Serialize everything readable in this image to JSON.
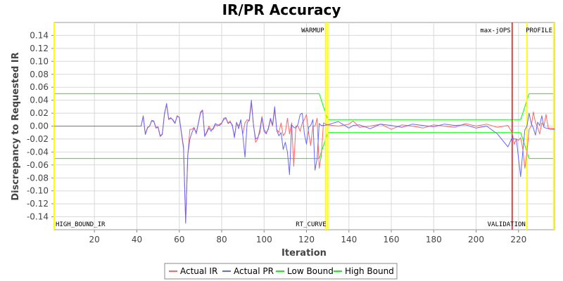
{
  "chart_data": {
    "type": "line",
    "title": "IR/PR Accuracy",
    "xlabel": "Iteration",
    "ylabel": "Discrepancy to Requested IR",
    "xlim": [
      1,
      237
    ],
    "ylim": [
      -0.16,
      0.16
    ],
    "x_ticks": [
      20,
      40,
      60,
      80,
      100,
      120,
      140,
      160,
      180,
      200,
      220
    ],
    "y_ticks": [
      -0.14,
      -0.12,
      -0.1,
      -0.08,
      -0.06,
      -0.04,
      -0.02,
      0.0,
      0.02,
      0.04,
      0.06,
      0.08,
      0.1,
      0.12,
      0.14
    ],
    "y_tick_labels": [
      "-0.14",
      "-0.12",
      "-0.10",
      "-0.08",
      "-0.06",
      "-0.04",
      "-0.02",
      "0.00",
      "0.02",
      "0.04",
      "0.06",
      "0.08",
      "0.10",
      "0.12",
      "0.14"
    ],
    "grid": true,
    "legend_position": "bottom",
    "markers": [
      {
        "label": "HIGH_BOUND_IR",
        "x": 1,
        "color": "#ffff00",
        "label_pos": "bottom"
      },
      {
        "label": "WARMUP",
        "x": 129,
        "color": "#ffff00",
        "label_pos": "top"
      },
      {
        "label": "RT_CURVE",
        "x": 130,
        "color": "#ffff00",
        "label_pos": "bottom"
      },
      {
        "label": "max-jOPS",
        "x": 217,
        "color": "#ff0000",
        "label_pos": "top"
      },
      {
        "label": "VALIDATION",
        "x": 224,
        "color": "#ffff00",
        "label_pos": "bottom"
      },
      {
        "label": "PROFILE",
        "x": 237,
        "color": "#ffff00",
        "label_pos": "top"
      }
    ],
    "series": [
      {
        "name": "Actual IR",
        "color": "#ff6666",
        "x": [
          1,
          42,
          43,
          44,
          45,
          46,
          47,
          48,
          49,
          50,
          51,
          52,
          53,
          54,
          55,
          56,
          57,
          58,
          59,
          60,
          61,
          62,
          63,
          64,
          65,
          66,
          67,
          68,
          69,
          70,
          71,
          72,
          73,
          74,
          75,
          76,
          77,
          78,
          79,
          80,
          81,
          82,
          83,
          84,
          85,
          86,
          87,
          88,
          89,
          90,
          91,
          92,
          93,
          94,
          95,
          96,
          97,
          98,
          99,
          100,
          101,
          102,
          103,
          104,
          105,
          106,
          107,
          108,
          109,
          110,
          111,
          112,
          113,
          114,
          115,
          116,
          117,
          118,
          119,
          120,
          121,
          122,
          123,
          124,
          125,
          126,
          127,
          128,
          130,
          135,
          140,
          142,
          145,
          150,
          155,
          160,
          165,
          170,
          175,
          180,
          185,
          190,
          195,
          200,
          205,
          210,
          215,
          217,
          218,
          219,
          220,
          221,
          222,
          223,
          224,
          225,
          226,
          227,
          228,
          229,
          230,
          231,
          232,
          233,
          234,
          235,
          237
        ],
        "y": [
          0.0,
          0.0,
          0.016,
          -0.012,
          -0.002,
          0.0,
          0.009,
          0.008,
          -0.002,
          -0.001,
          -0.015,
          -0.012,
          0.02,
          0.033,
          0.01,
          0.012,
          0.01,
          0.005,
          0.015,
          0.014,
          -0.012,
          -0.035,
          -0.148,
          -0.045,
          -0.005,
          -0.005,
          -0.002,
          -0.012,
          0.005,
          0.022,
          0.025,
          -0.015,
          -0.008,
          0.0,
          -0.005,
          -0.005,
          0.002,
          0.0,
          0.003,
          0.005,
          0.01,
          0.012,
          0.005,
          0.008,
          0.0,
          -0.015,
          0.005,
          0.0,
          0.008,
          -0.012,
          0.005,
          0.01,
          0.008,
          0.035,
          0.002,
          -0.025,
          -0.02,
          -0.005,
          0.015,
          -0.005,
          -0.01,
          -0.005,
          0.01,
          0.0,
          0.025,
          -0.005,
          -0.01,
          0.005,
          -0.015,
          -0.01,
          0.012,
          -0.012,
          0.005,
          -0.062,
          0.0,
          0.0,
          -0.008,
          0.005,
          0.01,
          0.018,
          -0.01,
          -0.03,
          0.0,
          0.0,
          0.012,
          -0.065,
          -0.045,
          0.005,
          0.002,
          0.0,
          0.003,
          0.008,
          -0.002,
          0.0,
          0.003,
          -0.005,
          0.002,
          0.0,
          -0.003,
          0.002,
          0.0,
          -0.002,
          0.004,
          0.0,
          0.003,
          -0.002,
          0.001,
          -0.01,
          -0.028,
          -0.02,
          -0.022,
          -0.018,
          -0.035,
          -0.065,
          -0.04,
          -0.005,
          0.0,
          0.022,
          0.005,
          -0.002,
          -0.012,
          0.005,
          0.0,
          0.018,
          -0.003,
          -0.003,
          -0.004
        ]
      },
      {
        "name": "Actual PR",
        "color": "#6666ff",
        "x": [
          1,
          42,
          43,
          44,
          45,
          46,
          47,
          48,
          49,
          50,
          51,
          52,
          53,
          54,
          55,
          56,
          57,
          58,
          59,
          60,
          61,
          62,
          63,
          64,
          65,
          66,
          67,
          68,
          69,
          70,
          71,
          72,
          73,
          74,
          75,
          76,
          77,
          78,
          79,
          80,
          81,
          82,
          83,
          84,
          85,
          86,
          87,
          88,
          89,
          90,
          91,
          92,
          93,
          94,
          95,
          96,
          97,
          98,
          99,
          100,
          101,
          102,
          103,
          104,
          105,
          106,
          107,
          108,
          109,
          110,
          111,
          112,
          113,
          114,
          115,
          116,
          117,
          118,
          119,
          120,
          121,
          122,
          123,
          124,
          125,
          126,
          127,
          128,
          130,
          135,
          140,
          142,
          145,
          150,
          155,
          160,
          165,
          170,
          175,
          180,
          185,
          190,
          195,
          200,
          205,
          210,
          215,
          217,
          218,
          219,
          220,
          221,
          222,
          223,
          224,
          225,
          226,
          227,
          228,
          229,
          230,
          231,
          232,
          233,
          234,
          235,
          237
        ],
        "y": [
          0.0,
          0.0,
          0.015,
          -0.013,
          -0.003,
          0.0,
          0.008,
          0.007,
          -0.003,
          -0.002,
          -0.016,
          -0.013,
          0.018,
          0.035,
          0.011,
          0.013,
          0.009,
          0.004,
          0.016,
          0.013,
          -0.01,
          -0.032,
          -0.15,
          -0.045,
          -0.02,
          -0.01,
          -0.003,
          -0.01,
          0.004,
          0.02,
          0.024,
          -0.016,
          -0.01,
          -0.003,
          -0.008,
          -0.003,
          0.004,
          0.002,
          0.001,
          0.004,
          0.012,
          0.013,
          0.004,
          0.006,
          0.002,
          -0.018,
          0.006,
          -0.004,
          0.01,
          -0.015,
          -0.048,
          0.005,
          0.01,
          0.04,
          0.001,
          -0.02,
          -0.018,
          -0.01,
          0.013,
          -0.008,
          -0.012,
          -0.003,
          0.012,
          0.002,
          0.03,
          -0.007,
          -0.015,
          -0.01,
          -0.036,
          -0.025,
          -0.04,
          -0.075,
          0.002,
          -0.002,
          -0.003,
          0.003,
          0.018,
          0.02,
          -0.012,
          -0.028,
          -0.002,
          0.001,
          0.01,
          -0.068,
          -0.05,
          0.004,
          0.001,
          0.001,
          0.002,
          0.007,
          -0.003,
          0.001,
          0.002,
          -0.004,
          0.003,
          0.001,
          -0.002,
          0.003,
          0.001,
          -0.001,
          0.003,
          0.001,
          0.002,
          -0.003,
          0.0,
          -0.012,
          -0.032,
          -0.018,
          -0.02,
          -0.02,
          -0.05,
          -0.078,
          -0.04,
          -0.006,
          0.0,
          0.02,
          0.004,
          -0.003,
          -0.014,
          0.006,
          0.001,
          0.016,
          -0.002,
          -0.003,
          -0.004,
          -0.005,
          -0.005
        ]
      },
      {
        "name": "Low Bound",
        "color": "#00ff00",
        "x": [
          1,
          126,
          130,
          217,
          221,
          225,
          237
        ],
        "y": [
          -0.05,
          -0.05,
          -0.01,
          -0.01,
          -0.01,
          -0.05,
          -0.05
        ]
      },
      {
        "name": "High Bound",
        "color": "#00ff00",
        "x": [
          1,
          126,
          130,
          217,
          221,
          225,
          237
        ],
        "y": [
          0.05,
          0.05,
          0.01,
          0.01,
          0.01,
          0.05,
          0.05
        ]
      }
    ]
  }
}
